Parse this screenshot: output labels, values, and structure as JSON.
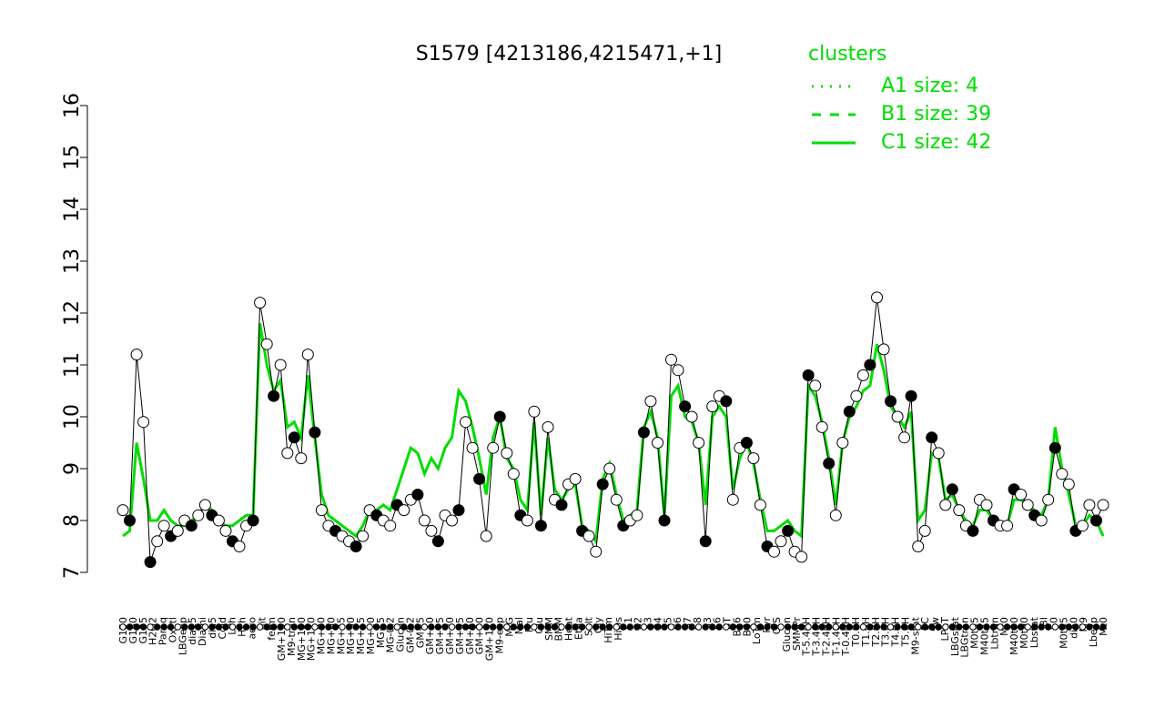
{
  "chart_data": {
    "type": "line",
    "title": "S1579 [4213186,4215471,+1]",
    "xlabel": "",
    "ylabel": "",
    "ylim": [
      7,
      16
    ],
    "yticks": [
      7,
      8,
      9,
      10,
      11,
      12,
      13,
      14,
      15,
      16
    ],
    "grid": false,
    "legend": {
      "title": "clusters",
      "position": "top-right",
      "entries": [
        {
          "label": "A1 size: 4",
          "style": "dotted",
          "color": "#00dd00"
        },
        {
          "label": "B1 size: 39",
          "style": "dashed",
          "color": "#00dd00"
        },
        {
          "label": "C1 size: 42",
          "style": "solid",
          "color": "#00dd00"
        }
      ]
    },
    "x_tick_labels": [
      "G150",
      "G180",
      "G135",
      "H2O2",
      "Paraq",
      "Oxctl",
      "LBGexp",
      "dia15",
      "Diami",
      "dia5",
      "Cold",
      "LPh",
      "HPh",
      "aero",
      "nit",
      "ferm",
      "GM+150",
      "M9-tran",
      "MG+150",
      "MG+120",
      "MG+90",
      "MG+60",
      "MG+45",
      "MG+30",
      "MG+15",
      "MG+10",
      "MG+5",
      "MG-0.2",
      "Glucon",
      "GM-0.2",
      "GM+5",
      "GM+10",
      "GM+15",
      "GM+30",
      "GM+45",
      "GM+60",
      "GM+90",
      "GM+120",
      "M9-exp",
      "M/G",
      "Mal",
      "Fru",
      "Glu",
      "SMM",
      "BMM",
      "Heat",
      "Etha",
      "Salt",
      "Gly",
      "HiTm",
      "HiOs",
      "S1",
      "S2",
      "S3",
      "S4",
      "S5",
      "S6",
      "S7",
      "S8",
      "S3",
      "S6",
      "BT",
      "B36",
      "B60",
      "LoTm",
      "Pyr",
      "G/S",
      "Glucon",
      "SMMPr",
      "T-5.40H",
      "T-3.40H",
      "T-2.40H",
      "T-1.40H",
      "T-0.40H",
      "T0.0H",
      "T1.0H",
      "T2.0H",
      "T3.0H",
      "T4.0H",
      "T5.0H",
      "M9-stat",
      "BC",
      "Sw",
      "LPhT",
      "LBGstat",
      "LBGtran",
      "M0t45",
      "M40t45",
      "Lbtran",
      "Mt0",
      "M40t90",
      "M0t90",
      "Lbstat",
      "BI",
      "S0",
      "M0t45",
      "dia0",
      "M9",
      "Lbexp",
      "Mt0"
    ],
    "series": [
      {
        "name": "",
        "color": "#000000",
        "values": [
          8.2,
          8.0,
          11.2,
          9.9,
          7.2,
          7.6,
          7.9,
          7.7,
          7.8,
          8.0,
          7.9,
          8.1,
          8.3,
          8.1,
          8.0,
          7.8,
          7.6,
          7.5,
          7.9,
          8.0,
          12.2,
          11.4,
          10.4,
          11.0,
          9.3,
          9.6,
          9.2,
          11.2,
          9.7,
          8.2,
          7.9,
          7.8,
          7.7,
          7.6,
          7.5,
          7.7,
          8.2,
          8.1,
          8.0,
          7.9,
          8.3,
          8.2,
          8.4,
          8.5,
          8.0,
          7.8,
          7.6,
          8.1,
          8.0,
          8.2,
          9.9,
          9.4,
          8.8,
          7.7,
          9.4,
          10.0,
          9.3,
          8.9,
          8.1,
          8.0,
          10.1,
          7.9,
          9.8,
          8.4,
          8.3,
          8.7,
          8.8,
          7.8,
          7.7,
          7.4,
          8.7,
          9.0,
          8.4,
          7.9,
          8.0,
          8.1,
          9.7,
          10.3,
          9.5,
          8.0,
          11.1,
          10.9,
          10.2,
          10.0,
          9.5,
          7.6,
          10.2,
          10.4,
          10.3,
          8.4,
          9.4,
          9.5,
          9.2,
          8.3,
          7.5,
          7.4,
          7.6,
          7.8,
          7.4,
          7.3,
          10.8,
          10.6,
          9.8,
          9.1,
          8.1,
          9.5,
          10.1,
          10.4,
          10.8,
          11.0,
          12.3,
          11.3,
          10.3,
          10.0,
          9.6,
          10.4,
          7.5,
          7.8,
          9.6,
          9.3,
          8.3,
          8.6,
          8.2,
          7.9,
          7.8,
          8.4,
          8.3,
          8.0,
          7.9,
          7.9,
          8.6,
          8.5,
          8.3,
          8.1,
          8.0,
          8.4,
          9.4,
          8.9,
          8.7,
          7.8,
          7.9,
          8.3,
          8.0,
          8.3
        ]
      }
    ],
    "cluster_series": [
      {
        "name": "C1",
        "color": "#00dd00",
        "values": [
          7.7,
          7.8,
          9.5,
          8.8,
          8.0,
          8.0,
          8.2,
          8.0,
          7.9,
          7.9,
          8.0,
          8.1,
          8.3,
          8.2,
          8.0,
          7.9,
          7.9,
          8.0,
          8.1,
          8.1,
          11.8,
          11.0,
          10.5,
          10.7,
          9.8,
          9.9,
          9.6,
          10.8,
          9.6,
          8.5,
          8.1,
          8.0,
          7.9,
          7.8,
          7.7,
          7.9,
          8.2,
          8.2,
          8.3,
          8.2,
          8.6,
          9.0,
          9.4,
          9.3,
          8.9,
          9.2,
          9.0,
          9.4,
          9.6,
          10.5,
          10.3,
          9.8,
          9.2,
          8.5,
          9.6,
          10.0,
          9.2,
          9.0,
          8.4,
          8.2,
          9.9,
          8.1,
          9.6,
          8.6,
          8.4,
          8.6,
          8.7,
          7.9,
          7.8,
          7.6,
          8.8,
          9.1,
          8.5,
          8.0,
          8.1,
          8.2,
          9.8,
          10.1,
          9.6,
          8.1,
          10.4,
          10.6,
          10.0,
          9.9,
          9.5,
          8.3,
          10.0,
          10.2,
          10.0,
          8.6,
          9.2,
          9.5,
          9.1,
          8.4,
          7.8,
          7.8,
          7.9,
          8.0,
          7.8,
          7.7,
          10.6,
          10.4,
          9.9,
          9.2,
          8.3,
          9.5,
          10.0,
          10.2,
          10.5,
          10.6,
          11.4,
          10.9,
          10.2,
          10.0,
          9.8,
          10.1,
          8.0,
          8.2,
          9.3,
          9.2,
          8.4,
          8.5,
          8.2,
          8.0,
          7.9,
          8.2,
          8.2,
          8.0,
          7.9,
          7.9,
          8.4,
          8.4,
          8.3,
          8.2,
          8.1,
          8.4,
          9.8,
          9.0,
          8.5,
          7.9,
          7.9,
          8.1,
          8.0,
          7.7
        ]
      }
    ]
  }
}
